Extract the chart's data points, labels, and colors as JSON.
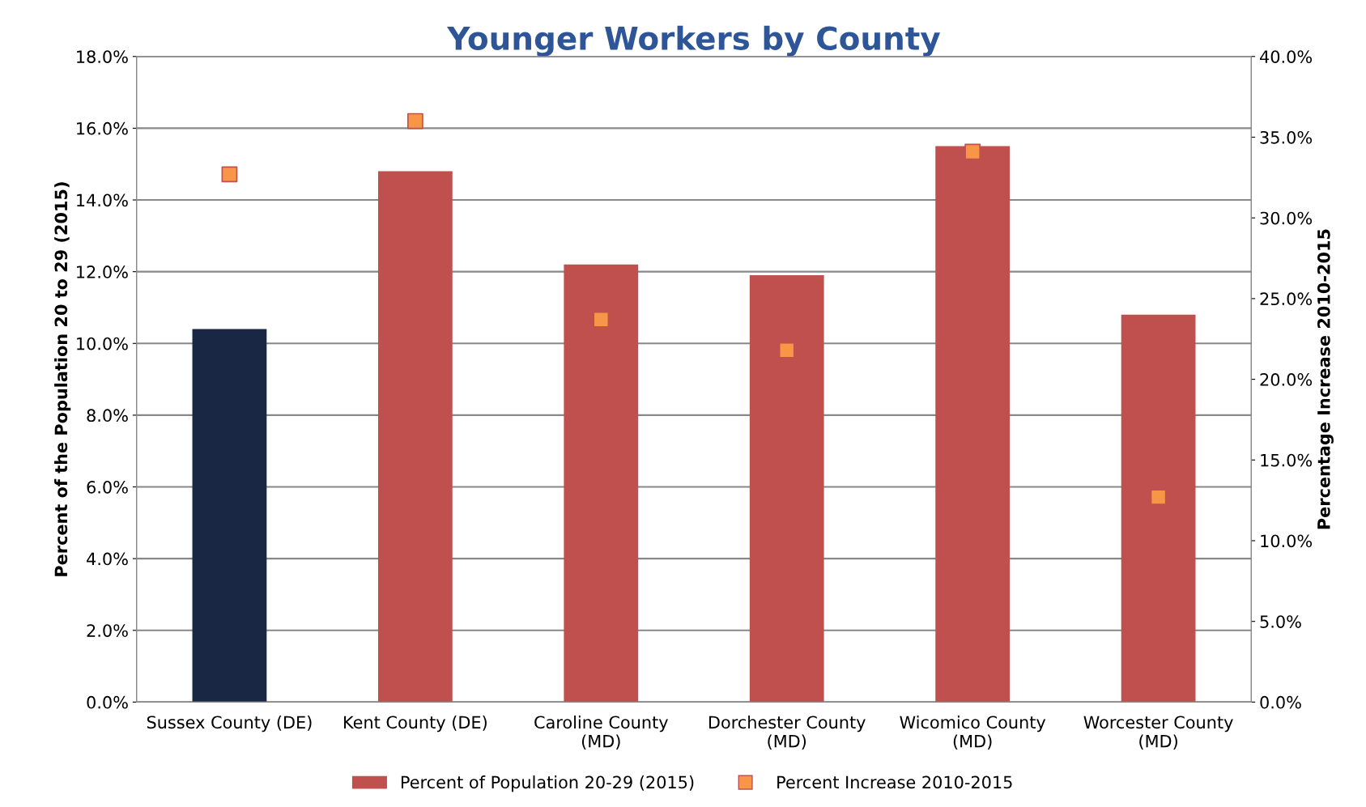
{
  "chart_data": {
    "type": "bar",
    "title": "Younger Workers by County",
    "categories": [
      "Sussex County (DE)",
      "Kent County (DE)",
      "Caroline County\n(MD)",
      "Dorchester County\n(MD)",
      "Wicomico County\n(MD)",
      "Worcester County\n(MD)"
    ],
    "series": [
      {
        "name": "Percent of Population 20-29 (2015)",
        "color": "#c0504d",
        "colors": [
          "#1a2744",
          "#c0504d",
          "#c0504d",
          "#c0504d",
          "#c0504d",
          "#c0504d"
        ],
        "values": [
          10.4,
          14.8,
          12.2,
          11.9,
          15.5,
          10.8
        ]
      },
      {
        "name": "Percent Increase 2010-2015",
        "type": "scatter",
        "axis": "y2",
        "color": "#f79646",
        "marker": "square",
        "values": [
          32.7,
          36.0,
          23.7,
          21.8,
          34.1,
          12.7
        ]
      }
    ],
    "ylabel": "Percent of the Population 20 to 29 (2015)",
    "y2label": "Percentage Increase 2010-2015",
    "ylim": [
      0,
      18
    ],
    "yticks": [
      {
        "value": 0,
        "label": "0.0%"
      },
      {
        "value": 2,
        "label": "2.0%"
      },
      {
        "value": 4,
        "label": "4.0%"
      },
      {
        "value": 6,
        "label": "6.0%"
      },
      {
        "value": 8,
        "label": "8.0%"
      },
      {
        "value": 10,
        "label": "10.0%"
      },
      {
        "value": 12,
        "label": "12.0%"
      },
      {
        "value": 14,
        "label": "14.0%"
      },
      {
        "value": 16,
        "label": "16.0%"
      },
      {
        "value": 18,
        "label": "18.0%"
      }
    ],
    "y2lim": [
      0,
      40
    ],
    "y2ticks": [
      {
        "value": 0,
        "label": "0.0%"
      },
      {
        "value": 5,
        "label": "5.0%"
      },
      {
        "value": 10,
        "label": "10.0%"
      },
      {
        "value": 15,
        "label": "15.0%"
      },
      {
        "value": 20,
        "label": "20.0%"
      },
      {
        "value": 25,
        "label": "25.0%"
      },
      {
        "value": 30,
        "label": "30.0%"
      },
      {
        "value": 35,
        "label": "35.0%"
      },
      {
        "value": 40,
        "label": "40.0%"
      }
    ],
    "grid": "y",
    "legend": "bottom"
  }
}
